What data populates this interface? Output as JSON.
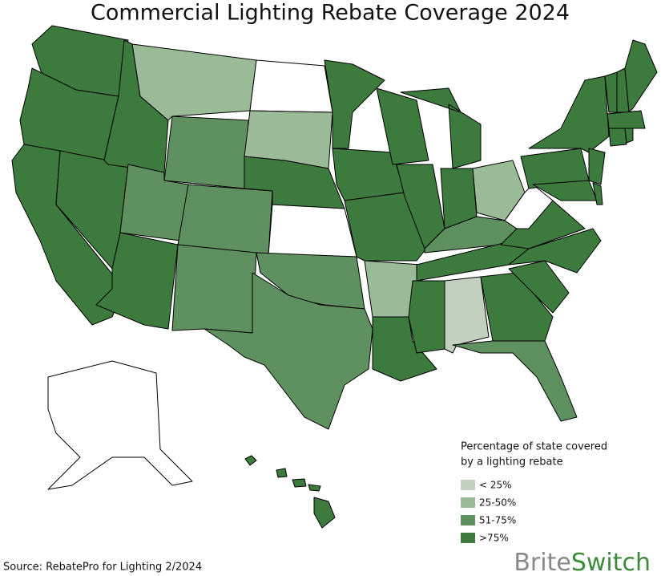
{
  "title": "Commercial Lighting Rebate Coverage 2024",
  "legend": {
    "title": [
      "Percentage of state covered",
      "by a lighting rebate"
    ],
    "items": [
      {
        "label": "< 25%",
        "color": "#c3d0bf"
      },
      {
        "label": "25-50%",
        "color": "#9bbb98"
      },
      {
        "label": "51-75%",
        "color": "#5f9060"
      },
      {
        "label": ">75%",
        "color": "#3d7a3d"
      }
    ]
  },
  "state_levels": [
    3,
    3,
    3,
    3,
    3,
    1,
    2,
    2,
    2,
    3,
    2,
    null,
    1,
    3,
    null,
    2,
    2,
    3,
    3,
    3,
    1,
    3,
    3,
    3,
    3,
    3,
    1,
    2,
    3,
    3,
    0,
    3,
    2,
    3,
    3,
    3,
    null,
    3,
    3,
    3,
    3,
    3,
    3,
    3,
    3,
    3,
    3,
    3,
    null,
    3
  ],
  "source": "Source: RebatePro for Lighting 2/2024",
  "brand": {
    "part1": "Brite",
    "part2": "Switch"
  }
}
